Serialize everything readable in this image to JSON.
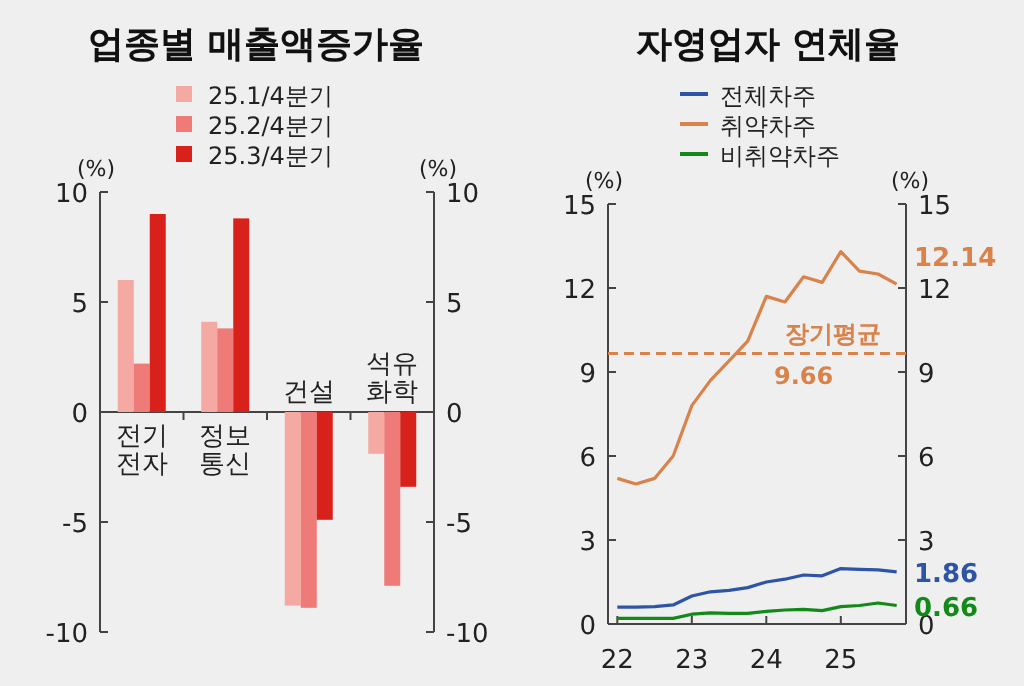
{
  "chart_data": [
    {
      "type": "bar",
      "title": "업종별 매출액증가율",
      "ylabel": "(%)",
      "y2label": "(%)",
      "categories": [
        "전기전자",
        "정보통신",
        "건설",
        "석유화학"
      ],
      "series": [
        {
          "name": "25.1/4분기",
          "color": "#f4a9a3",
          "values": [
            6.0,
            4.1,
            -8.8,
            -1.9
          ]
        },
        {
          "name": "25.2/4분기",
          "color": "#ee7b78",
          "values": [
            2.2,
            3.8,
            -8.9,
            -7.9
          ]
        },
        {
          "name": "25.3/4분기",
          "color": "#d9211b",
          "values": [
            9.0,
            8.8,
            -4.9,
            -3.4
          ]
        }
      ],
      "ylim": [
        -10,
        10
      ],
      "yticks": [
        -10,
        -5,
        0,
        5,
        10
      ],
      "y2lim": [
        -10,
        10
      ],
      "y2ticks": [
        -10,
        -5,
        0,
        5,
        10
      ],
      "legend": "top",
      "grid": false
    },
    {
      "type": "line",
      "title": "자영업자 연체율",
      "ylabel": "(%)",
      "y2label": "(%)",
      "x": [
        22,
        22.25,
        22.5,
        22.75,
        23,
        23.25,
        23.5,
        23.75,
        24,
        24.25,
        24.5,
        24.75,
        25,
        25.25,
        25.5,
        25.75
      ],
      "series": [
        {
          "name": "전체차주",
          "color": "#2e55a5",
          "values": [
            0.6,
            0.6,
            0.62,
            0.68,
            1.0,
            1.15,
            1.2,
            1.3,
            1.5,
            1.6,
            1.75,
            1.72,
            1.98,
            1.95,
            1.93,
            1.86
          ],
          "value_labels": [
            null,
            null,
            null,
            null,
            null,
            null,
            null,
            null,
            null,
            null,
            null,
            null,
            null,
            null,
            null,
            "1.86"
          ]
        },
        {
          "name": "취약차주",
          "color": "#d9824a",
          "values": [
            5.2,
            5.0,
            5.2,
            6.0,
            7.8,
            8.7,
            9.4,
            10.1,
            11.7,
            11.5,
            12.4,
            12.2,
            13.3,
            12.6,
            12.5,
            12.14
          ],
          "value_labels": [
            null,
            null,
            null,
            null,
            null,
            null,
            null,
            null,
            null,
            null,
            null,
            null,
            null,
            null,
            null,
            "12.14"
          ]
        },
        {
          "name": "비취약차주",
          "color": "#13891a",
          "values": [
            0.2,
            0.2,
            0.2,
            0.2,
            0.35,
            0.4,
            0.38,
            0.38,
            0.45,
            0.5,
            0.52,
            0.48,
            0.62,
            0.66,
            0.75,
            0.66
          ],
          "value_labels": [
            null,
            null,
            null,
            null,
            null,
            null,
            null,
            null,
            null,
            null,
            null,
            null,
            null,
            null,
            null,
            "0.66"
          ]
        }
      ],
      "xlim": [
        21.875,
        25.875
      ],
      "xticks": [
        22,
        23,
        24,
        25
      ],
      "ylim": [
        0,
        15
      ],
      "yticks": [
        0,
        3,
        6,
        9,
        12,
        15
      ],
      "y2lim": [
        0,
        15
      ],
      "y2ticks": [
        0,
        3,
        6,
        9,
        12,
        15
      ],
      "ref_lines": [
        {
          "axis": "y",
          "value": 9.66,
          "label": "장기평균",
          "color": "#d9824a",
          "line_style": "dashed"
        }
      ],
      "annotations": [
        {
          "text": "9.66",
          "x": 24.5,
          "y": 9.66
        }
      ],
      "legend": "top",
      "grid": false,
      "marker": "none",
      "line_style": "solid"
    }
  ]
}
